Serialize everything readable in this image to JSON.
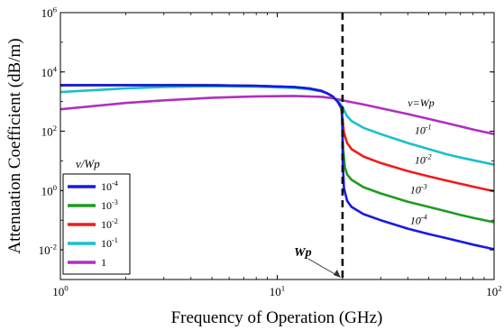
{
  "chart_data": {
    "type": "line",
    "xlabel": "Frequency of Operation (GHz)",
    "ylabel": "Attenuation Coefficient (dB/m)",
    "xscale": "log",
    "yscale": "log",
    "xlim": [
      1,
      100
    ],
    "ylim": [
      0.001,
      1000000
    ],
    "x_ticks": [
      {
        "value": 1,
        "base": "10",
        "exp": "0"
      },
      {
        "value": 10,
        "base": "10",
        "exp": "1"
      },
      {
        "value": 100,
        "base": "10",
        "exp": "2"
      }
    ],
    "y_ticks": [
      {
        "value": 0.01,
        "base": "10",
        "exp": "-2"
      },
      {
        "value": 1,
        "base": "10",
        "exp": "0"
      },
      {
        "value": 100,
        "base": "10",
        "exp": "2"
      },
      {
        "value": 10000,
        "base": "10",
        "exp": "4"
      },
      {
        "value": 1000000,
        "base": "10",
        "exp": "6"
      }
    ],
    "grid": false,
    "legend": {
      "title": "v/Wp",
      "position": "bottom-left"
    },
    "vline": {
      "x": 20,
      "label": "Wp",
      "style": "dashed",
      "color": "#111111"
    },
    "series": [
      {
        "name": "1",
        "legend_base": "1",
        "legend_exp": "",
        "color": "#b02fc0",
        "x": [
          1,
          2,
          3,
          5,
          8,
          12,
          16,
          18,
          20,
          25,
          30,
          40,
          50,
          60,
          70,
          80,
          100
        ],
        "y": [
          550,
          900,
          1100,
          1350,
          1500,
          1550,
          1450,
          1300,
          1100,
          800,
          600,
          380,
          260,
          190,
          145,
          115,
          80
        ]
      },
      {
        "name": "10^-1",
        "legend_base": "10",
        "legend_exp": "-1",
        "color": "#18c0c8",
        "x": [
          1,
          2,
          3,
          5,
          8,
          12,
          14,
          16,
          17,
          18,
          19,
          19.5,
          20,
          21,
          22,
          25,
          30,
          40,
          50,
          60,
          70,
          80,
          100
        ],
        "y": [
          2100,
          2800,
          3100,
          3300,
          3200,
          2900,
          2600,
          2200,
          1900,
          1500,
          1050,
          850,
          650,
          320,
          220,
          130,
          80,
          40,
          25,
          17,
          13,
          10.5,
          7.5
        ]
      },
      {
        "name": "10^-2",
        "legend_base": "10",
        "legend_exp": "-2",
        "color": "#ee1c1c",
        "x": [
          1,
          2,
          3,
          5,
          8,
          12,
          14,
          16,
          17,
          18,
          19,
          19.7,
          20,
          20.3,
          21,
          22,
          25,
          30,
          40,
          50,
          60,
          70,
          80,
          100
        ],
        "y": [
          3500,
          3600,
          3600,
          3550,
          3400,
          3100,
          2800,
          2300,
          1900,
          1500,
          1000,
          600,
          250,
          90,
          40,
          25,
          14,
          8.5,
          4.5,
          3,
          2.2,
          1.7,
          1.35,
          0.95
        ]
      },
      {
        "name": "10^-3",
        "legend_base": "10",
        "legend_exp": "-3",
        "color": "#1f9a22",
        "x": [
          1,
          2,
          3,
          5,
          8,
          12,
          14,
          16,
          17,
          18,
          19,
          19.8,
          20,
          20.1,
          20.5,
          21,
          22,
          25,
          30,
          40,
          50,
          60,
          70,
          80,
          100
        ],
        "y": [
          3600,
          3600,
          3600,
          3550,
          3400,
          3100,
          2800,
          2300,
          1900,
          1500,
          1000,
          600,
          120,
          30,
          6,
          3.5,
          2.3,
          1.3,
          0.8,
          0.42,
          0.28,
          0.2,
          0.15,
          0.12,
          0.085
        ]
      },
      {
        "name": "10^-4",
        "legend_base": "10",
        "legend_exp": "-4",
        "color": "#1818e8",
        "x": [
          1,
          2,
          3,
          5,
          8,
          12,
          14,
          16,
          17,
          18,
          19,
          19.9,
          20,
          20.05,
          20.3,
          21,
          22,
          25,
          30,
          40,
          50,
          60,
          70,
          80,
          100
        ],
        "y": [
          3600,
          3600,
          3600,
          3550,
          3400,
          3100,
          2800,
          2300,
          1900,
          1500,
          1000,
          600,
          60,
          8,
          1.2,
          0.45,
          0.28,
          0.16,
          0.1,
          0.052,
          0.034,
          0.025,
          0.019,
          0.015,
          0.0105
        ]
      }
    ],
    "annotations": [
      {
        "series": "1",
        "x": 40,
        "y": 680,
        "base": "v=Wp",
        "exp": ""
      },
      {
        "series": "10^-1",
        "x": 43,
        "y": 80,
        "base": "10",
        "exp": "-1"
      },
      {
        "series": "10^-2",
        "x": 43,
        "y": 8,
        "base": "10",
        "exp": "-2"
      },
      {
        "series": "10^-3",
        "x": 41,
        "y": 0.8,
        "base": "10",
        "exp": "-3"
      },
      {
        "series": "10^-4",
        "x": 41,
        "y": 0.075,
        "base": "10",
        "exp": "-4"
      }
    ]
  }
}
